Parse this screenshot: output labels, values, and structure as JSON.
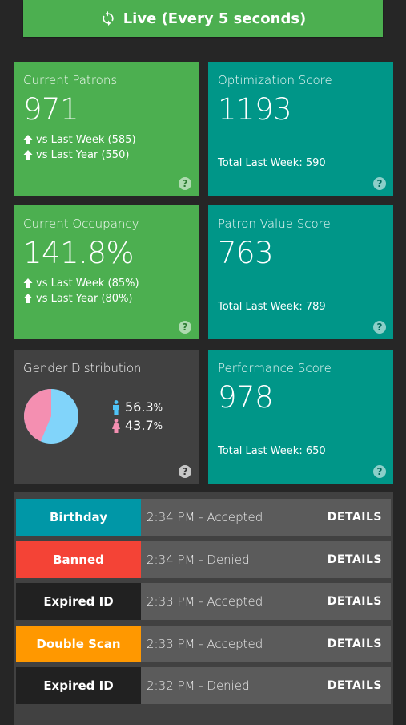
{
  "live_bar": {
    "label": "Live (Every 5 seconds)"
  },
  "cards": {
    "current_patrons": {
      "title": "Current Patrons",
      "value": "971",
      "comparisons": [
        "vs Last Week (585)",
        "vs Last Year (550)"
      ]
    },
    "optimization_score": {
      "title": "Optimization Score",
      "value": "1193",
      "total": "Total Last Week: 590"
    },
    "current_occupancy": {
      "title": "Current Occupancy",
      "value": "141.8%",
      "comparisons": [
        "vs Last Week (85%)",
        "vs Last Year (80%)"
      ]
    },
    "patron_value_score": {
      "title": "Patron Value Score",
      "value": "763",
      "total": "Total Last Week: 789"
    },
    "gender_distribution": {
      "title": "Gender Distribution",
      "male": {
        "value": "56.3",
        "unit": "%"
      },
      "female": {
        "value": "43.7",
        "unit": "%"
      }
    },
    "performance_score": {
      "title": "Performance Score",
      "value": "978",
      "total": "Total Last Week: 650"
    },
    "help_symbol": "?"
  },
  "events": [
    {
      "tag": "Birthday",
      "tag_color": "#0097a7",
      "time": "2:34 PM - Accepted",
      "action": "DETAILS"
    },
    {
      "tag": "Banned",
      "tag_color": "#f44336",
      "time": "2:34 PM - Denied",
      "action": "DETAILS"
    },
    {
      "tag": "Expired ID",
      "tag_color": "#212121",
      "time": "2:33 PM - Accepted",
      "action": "DETAILS"
    },
    {
      "tag": "Double Scan",
      "tag_color": "#ff9800",
      "time": "2:33 PM - Accepted",
      "action": "DETAILS"
    },
    {
      "tag": "Expired ID",
      "tag_color": "#212121",
      "time": "2:32 PM - Denied",
      "action": "DETAILS"
    }
  ],
  "colors": {
    "green": "#4caf50",
    "teal": "#009688",
    "dark_card": "#414141",
    "pie_male": "#81d4fa",
    "pie_female": "#f48fb1"
  },
  "icons": [
    "sync-icon",
    "arrow-up-icon",
    "help-icon",
    "male-icon",
    "female-icon"
  ]
}
